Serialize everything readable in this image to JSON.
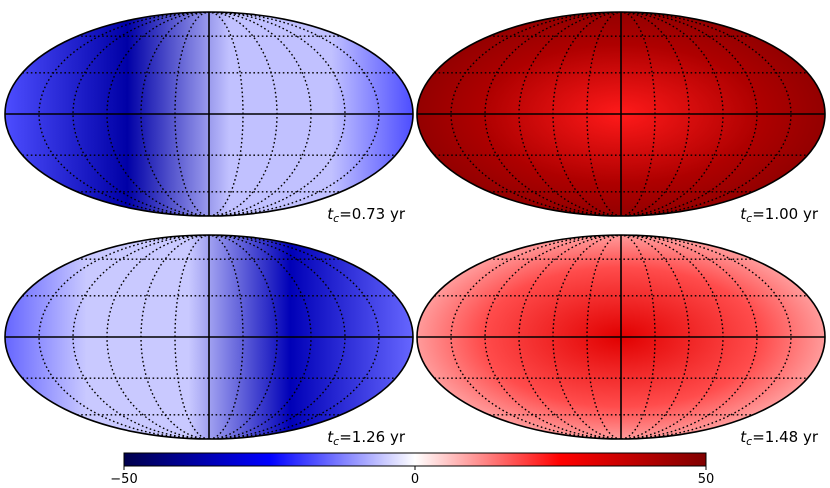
{
  "panels": [
    {
      "label_var": "t",
      "label_sub": "c",
      "label_value": "=0.73 yr",
      "level": -0.35,
      "pattern": "left"
    },
    {
      "label_var": "t",
      "label_sub": "c",
      "label_value": "=1.00 yr",
      "level": 0.82,
      "pattern": "dipole"
    },
    {
      "label_var": "t",
      "label_sub": "c",
      "label_value": "=1.26 yr",
      "level": -0.3,
      "pattern": "right"
    },
    {
      "label_var": "t",
      "label_sub": "c",
      "label_value": "=1.48 yr",
      "level": 0.35,
      "pattern": "center"
    }
  ],
  "colorbar": {
    "min": -50,
    "max": 50,
    "ticks": [
      -50,
      0,
      50
    ],
    "tick_labels": [
      "−50",
      "0",
      "50"
    ],
    "colors": [
      "#00004c",
      "#0000ff",
      "#ffffff",
      "#ff0000",
      "#800000"
    ]
  }
}
